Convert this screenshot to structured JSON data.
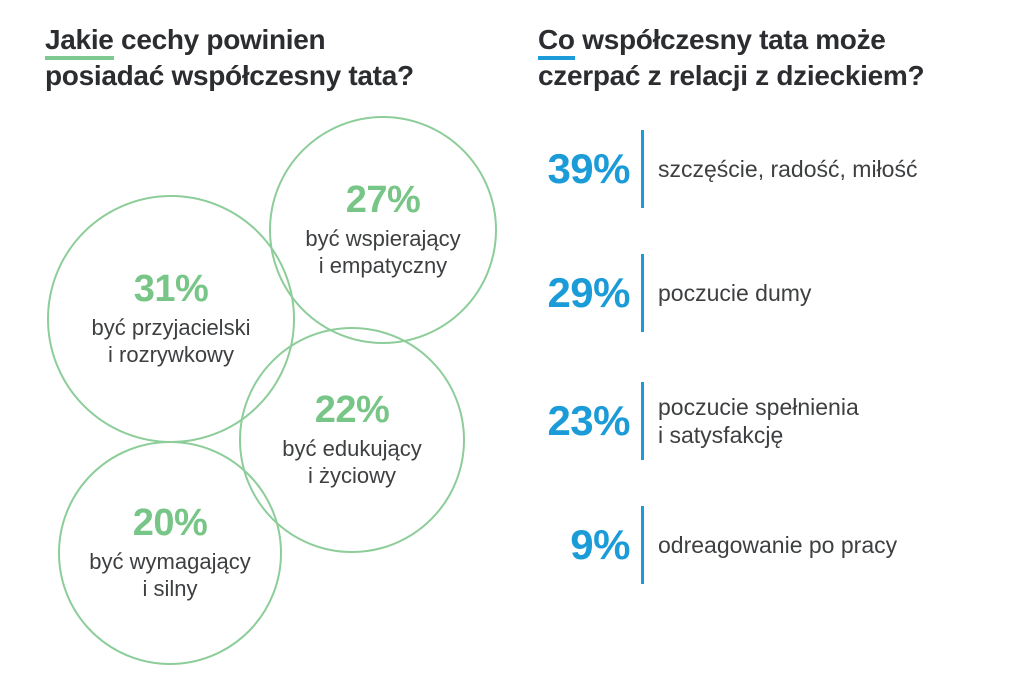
{
  "colors": {
    "green_accent": "#78c687",
    "green_circle_stroke": "#8ccd99",
    "blue_accent": "#1b9bd7",
    "title_text": "#2b2d30",
    "body_text": "#3d3f41"
  },
  "left_section": {
    "title": {
      "highlight": "Jakie",
      "line1_rest": " cechy powinien",
      "line2": "posiadać współczesny tata?"
    },
    "bubbles": [
      {
        "value": "31%",
        "label_line1": "być przyjacielski",
        "label_line2": "i rozrywkowy"
      },
      {
        "value": "27%",
        "label_line1": "być wspierający",
        "label_line2": "i empatyczny"
      },
      {
        "value": "22%",
        "label_line1": "być edukujący",
        "label_line2": "i życiowy"
      },
      {
        "value": "20%",
        "label_line1": "być wymagający",
        "label_line2": "i silny"
      }
    ]
  },
  "right_section": {
    "title": {
      "highlight": "Co",
      "line1_rest": " współczesny tata może",
      "line2": "czerpać z relacji z dzieckiem?"
    },
    "items": [
      {
        "value": "39%",
        "label_line1": "szczęście, radość, miłość"
      },
      {
        "value": "29%",
        "label_line1": "poczucie dumy"
      },
      {
        "value": "23%",
        "label_line1": "poczucie spełnienia",
        "label_line2": "i satysfakcję"
      },
      {
        "value": "9%",
        "label_line1": "odreagowanie po pracy"
      }
    ]
  },
  "chart_data": [
    {
      "type": "bubble",
      "title": "Jakie cechy powinien posiadać współczesny tata?",
      "categories": [
        "być przyjacielski i rozrywkowy",
        "być wspierający i empatyczny",
        "być edukujący i życiowy",
        "być wymagający i silny"
      ],
      "values": [
        31,
        27,
        22,
        20
      ],
      "unit": "%",
      "accent_color": "#78c687"
    },
    {
      "type": "bar",
      "title": "Co współczesny tata może czerpać z relacji z dzieckiem?",
      "categories": [
        "szczęście, radość, miłość",
        "poczucie dumy",
        "poczucie spełnienia i satysfakcję",
        "odreagowanie po pracy"
      ],
      "values": [
        39,
        29,
        23,
        9
      ],
      "unit": "%",
      "accent_color": "#1b9bd7"
    }
  ]
}
